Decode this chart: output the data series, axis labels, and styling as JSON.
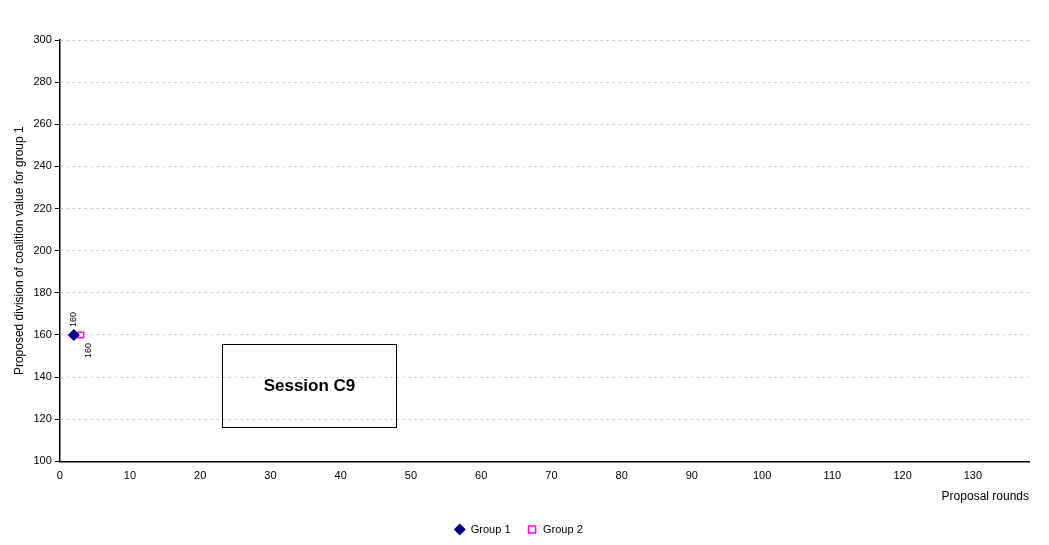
{
  "chart_data": {
    "type": "line",
    "xlabel": "Proposal rounds",
    "ylabel": "Proposed division of coalition value for group 1",
    "xlim": [
      0,
      138
    ],
    "xticks": [
      0,
      10,
      20,
      30,
      40,
      50,
      60,
      70,
      80,
      90,
      100,
      110,
      120,
      130
    ],
    "ylim": [
      100,
      300
    ],
    "yticks": [
      100,
      120,
      140,
      160,
      180,
      200,
      220,
      240,
      260,
      280,
      300
    ],
    "grid": "y",
    "legend": "bottom",
    "data_labels": true,
    "annotations": [
      "Session C9"
    ],
    "series": [
      {
        "name": "Group 1",
        "color": "#000080",
        "x": [
          2
        ],
        "values": [
          160
        ],
        "marker": "diamond"
      },
      {
        "name": "Group 2",
        "color": "#ff00ff",
        "x": [
          3
        ],
        "values": [
          160
        ],
        "marker": "square"
      }
    ]
  }
}
